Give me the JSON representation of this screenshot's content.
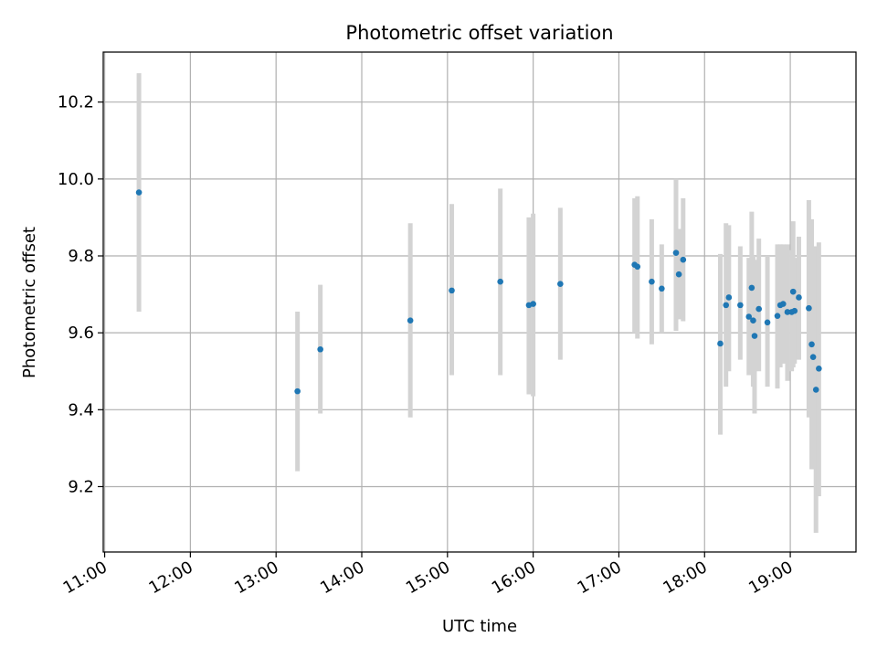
{
  "chart_data": {
    "type": "scatter",
    "title": "Photometric offset variation",
    "xlabel": "UTC time",
    "ylabel": "Photometric offset",
    "x_tick_labels": [
      "11:00",
      "12:00",
      "13:00",
      "14:00",
      "15:00",
      "16:00",
      "17:00",
      "18:00",
      "19:00"
    ],
    "y_tick_labels": [
      "9.2",
      "9.4",
      "9.6",
      "9.8",
      "10.0",
      "10.2"
    ],
    "y_ticks": [
      9.2,
      9.4,
      9.6,
      9.8,
      10.0,
      10.2
    ],
    "xlim": [
      "10:59",
      "19:46"
    ],
    "ylim": [
      9.03,
      10.33
    ],
    "grid": true,
    "colors": {
      "points": "#1f77b4",
      "errorbars": "#d3d3d3",
      "grid": "#b0b0b0"
    },
    "points": [
      {
        "x": "11:24",
        "y": 9.965,
        "lo": 9.655,
        "hi": 10.275
      },
      {
        "x": "13:15",
        "y": 9.448,
        "lo": 9.24,
        "hi": 9.655
      },
      {
        "x": "13:31",
        "y": 9.557,
        "lo": 9.39,
        "hi": 9.725
      },
      {
        "x": "14:34",
        "y": 9.632,
        "lo": 9.38,
        "hi": 9.885
      },
      {
        "x": "15:03",
        "y": 9.71,
        "lo": 9.49,
        "hi": 9.935
      },
      {
        "x": "15:37",
        "y": 9.733,
        "lo": 9.49,
        "hi": 9.975
      },
      {
        "x": "15:57",
        "y": 9.672,
        "lo": 9.44,
        "hi": 9.9
      },
      {
        "x": "16:00",
        "y": 9.675,
        "lo": 9.435,
        "hi": 9.91
      },
      {
        "x": "16:19",
        "y": 9.727,
        "lo": 9.53,
        "hi": 9.925
      },
      {
        "x": "17:11",
        "y": 9.777,
        "lo": 9.6,
        "hi": 9.95
      },
      {
        "x": "17:13",
        "y": 9.772,
        "lo": 9.585,
        "hi": 9.955
      },
      {
        "x": "17:23",
        "y": 9.733,
        "lo": 9.57,
        "hi": 9.895
      },
      {
        "x": "17:30",
        "y": 9.715,
        "lo": 9.6,
        "hi": 9.83
      },
      {
        "x": "17:40",
        "y": 9.808,
        "lo": 9.605,
        "hi": 10.0
      },
      {
        "x": "17:42",
        "y": 9.752,
        "lo": 9.635,
        "hi": 9.87
      },
      {
        "x": "17:45",
        "y": 9.79,
        "lo": 9.63,
        "hi": 9.95
      },
      {
        "x": "18:11",
        "y": 9.572,
        "lo": 9.335,
        "hi": 9.805
      },
      {
        "x": "18:15",
        "y": 9.672,
        "lo": 9.46,
        "hi": 9.885
      },
      {
        "x": "18:17",
        "y": 9.692,
        "lo": 9.5,
        "hi": 9.88
      },
      {
        "x": "18:25",
        "y": 9.672,
        "lo": 9.53,
        "hi": 9.825
      },
      {
        "x": "18:31",
        "y": 9.642,
        "lo": 9.49,
        "hi": 9.795
      },
      {
        "x": "18:33",
        "y": 9.717,
        "lo": 9.52,
        "hi": 9.915
      },
      {
        "x": "18:34",
        "y": 9.632,
        "lo": 9.46,
        "hi": 9.8
      },
      {
        "x": "18:35",
        "y": 9.592,
        "lo": 9.39,
        "hi": 9.79
      },
      {
        "x": "18:38",
        "y": 9.662,
        "lo": 9.5,
        "hi": 9.845
      },
      {
        "x": "18:44",
        "y": 9.627,
        "lo": 9.46,
        "hi": 9.8
      },
      {
        "x": "18:51",
        "y": 9.644,
        "lo": 9.455,
        "hi": 9.83
      },
      {
        "x": "18:53",
        "y": 9.672,
        "lo": 9.51,
        "hi": 9.83
      },
      {
        "x": "18:55",
        "y": 9.675,
        "lo": 9.52,
        "hi": 9.83
      },
      {
        "x": "18:58",
        "y": 9.654,
        "lo": 9.475,
        "hi": 9.83
      },
      {
        "x": "19:01",
        "y": 9.654,
        "lo": 9.5,
        "hi": 9.815
      },
      {
        "x": "19:02",
        "y": 9.707,
        "lo": 9.51,
        "hi": 9.89
      },
      {
        "x": "19:03",
        "y": 9.657,
        "lo": 9.52,
        "hi": 9.795
      },
      {
        "x": "19:06",
        "y": 9.692,
        "lo": 9.53,
        "hi": 9.85
      },
      {
        "x": "19:13",
        "y": 9.664,
        "lo": 9.38,
        "hi": 9.945
      },
      {
        "x": "19:15",
        "y": 9.57,
        "lo": 9.245,
        "hi": 9.895
      },
      {
        "x": "19:16",
        "y": 9.537,
        "lo": 9.27,
        "hi": 9.82
      },
      {
        "x": "19:18",
        "y": 9.452,
        "lo": 9.08,
        "hi": 9.825
      },
      {
        "x": "19:20",
        "y": 9.507,
        "lo": 9.175,
        "hi": 9.835
      }
    ]
  }
}
